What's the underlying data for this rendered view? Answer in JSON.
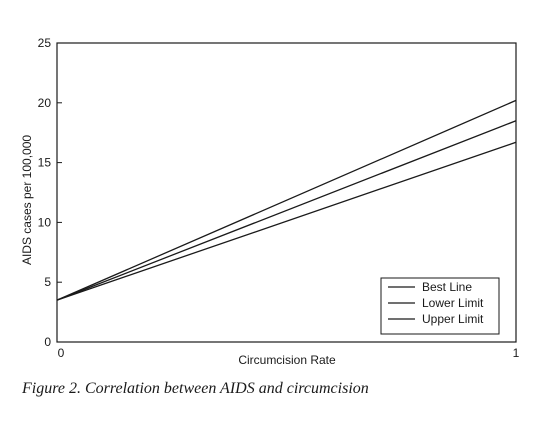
{
  "chart_data": {
    "type": "line",
    "xlabel": "Circumcision Rate",
    "ylabel": "AIDS cases per 100,000",
    "xlim": [
      0,
      1
    ],
    "ylim": [
      0,
      25
    ],
    "x_ticks": [
      "0",
      "1"
    ],
    "y_ticks": [
      "0",
      "5",
      "10",
      "15",
      "20",
      "25"
    ],
    "grid": false,
    "legend_position": "bottom-right",
    "series": [
      {
        "name": "Best Line",
        "x": [
          0,
          1
        ],
        "y": [
          3.5,
          18.5
        ]
      },
      {
        "name": "Lower Limit",
        "x": [
          0,
          1
        ],
        "y": [
          3.5,
          16.7
        ]
      },
      {
        "name": "Upper Limit",
        "x": [
          0,
          1
        ],
        "y": [
          3.5,
          20.2
        ]
      }
    ]
  },
  "caption": "Figure 2. Correlation between AIDS and circumcision"
}
